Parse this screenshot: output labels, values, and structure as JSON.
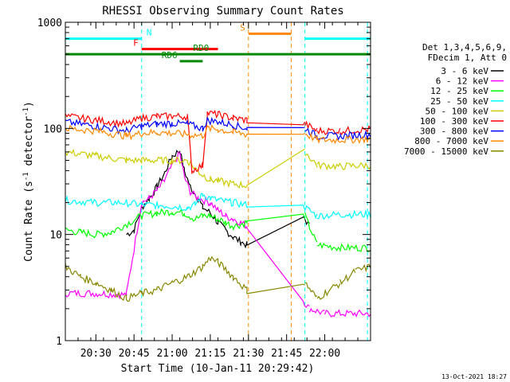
{
  "chart_data": {
    "type": "line",
    "title": "RHESSI Observing Summary Count Rates",
    "xlabel": "Start Time (10-Jan-11 20:29:42)",
    "ylabel_main": "Count Rate (s",
    "ylabel_sup1": "-1",
    "ylabel_mid": " detector",
    "ylabel_sup2": "-1",
    "ylabel_end": ")",
    "y_scale": "log",
    "xlim_minutes": [
      20.3,
      22.3
    ],
    "ylim": [
      1,
      1000
    ],
    "x_ticks": [
      {
        "v": 20.5,
        "label": "20:30"
      },
      {
        "v": 20.75,
        "label": "20:45"
      },
      {
        "v": 21.0,
        "label": "21:00"
      },
      {
        "v": 21.25,
        "label": "21:15"
      },
      {
        "v": 21.5,
        "label": "21:30"
      },
      {
        "v": 21.75,
        "label": "21:45"
      },
      {
        "v": 22.0,
        "label": "22:00"
      }
    ],
    "y_ticks": [
      {
        "v": 1,
        "label": "1"
      },
      {
        "v": 10,
        "label": "10"
      },
      {
        "v": 100,
        "label": "100"
      },
      {
        "v": 1000,
        "label": "1000"
      }
    ],
    "legend_header": [
      "Det 1,3,4,5,6,9,",
      "FDecim 1, Att 0"
    ],
    "legend_position": "right",
    "footer_date": "13-Oct-2021 18:27",
    "flags": [
      {
        "label": "N",
        "color": "#00ffff",
        "y": 700,
        "segments": [
          [
            20.3,
            20.8
          ],
          [
            21.87,
            22.3
          ]
        ]
      },
      {
        "label": "F",
        "color": "#ff0000",
        "y": 560,
        "segments": [
          [
            20.8,
            21.3
          ]
        ]
      },
      {
        "label": "S",
        "color": "#ff8800",
        "y": 780,
        "segments": [
          [
            21.5,
            21.78
          ]
        ]
      },
      {
        "label": "RD0",
        "color": "#008800",
        "y": 500,
        "segments": [
          [
            20.3,
            22.3
          ]
        ]
      },
      {
        "label": "RD6",
        "color": "#008800",
        "y": 430,
        "segments": [
          [
            21.05,
            21.2
          ]
        ]
      }
    ],
    "vlines": [
      {
        "x": 20.8,
        "color": "#00ffff"
      },
      {
        "x": 21.5,
        "color": "#ff8800"
      },
      {
        "x": 21.78,
        "color": "#ff8800"
      },
      {
        "x": 21.87,
        "color": "#00ffff"
      },
      {
        "x": 22.28,
        "color": "#00ffff"
      }
    ],
    "gap": [
      21.5,
      21.85
    ],
    "series": [
      {
        "name": "3 - 6 keV",
        "color": "#000000",
        "points": [
          [
            20.7,
            10
          ],
          [
            20.75,
            11
          ],
          [
            20.8,
            18
          ],
          [
            20.85,
            22
          ],
          [
            20.9,
            28
          ],
          [
            20.95,
            38
          ],
          [
            21.0,
            55
          ],
          [
            21.05,
            62
          ],
          [
            21.08,
            40
          ],
          [
            21.12,
            28
          ],
          [
            21.17,
            22
          ],
          [
            21.2,
            18
          ],
          [
            21.25,
            16
          ],
          [
            21.3,
            13
          ],
          [
            21.35,
            11
          ],
          [
            21.4,
            9.5
          ],
          [
            21.45,
            8.5
          ],
          [
            21.49,
            8
          ],
          [
            21.87,
            14
          ],
          [
            21.9,
            12
          ]
        ]
      },
      {
        "name": "6 - 12 keV",
        "color": "#ff00ff",
        "points": [
          [
            20.3,
            2.8
          ],
          [
            20.5,
            2.8
          ],
          [
            20.7,
            2.7
          ],
          [
            20.8,
            20
          ],
          [
            20.85,
            22
          ],
          [
            20.9,
            26
          ],
          [
            20.95,
            32
          ],
          [
            21.0,
            45
          ],
          [
            21.05,
            58
          ],
          [
            21.08,
            35
          ],
          [
            21.12,
            25
          ],
          [
            21.17,
            22
          ],
          [
            21.25,
            20
          ],
          [
            21.3,
            17
          ],
          [
            21.35,
            15
          ],
          [
            21.4,
            14
          ],
          [
            21.45,
            13
          ],
          [
            21.49,
            12
          ],
          [
            21.9,
            2
          ],
          [
            22.0,
            1.8
          ],
          [
            22.3,
            1.8
          ]
        ]
      },
      {
        "name": "12 - 25 keV",
        "color": "#00ff00",
        "points": [
          [
            20.3,
            11
          ],
          [
            20.4,
            10.5
          ],
          [
            20.5,
            10
          ],
          [
            20.6,
            10.5
          ],
          [
            20.8,
            15
          ],
          [
            20.9,
            16
          ],
          [
            21.0,
            16.5
          ],
          [
            21.08,
            16
          ],
          [
            21.15,
            14
          ],
          [
            21.2,
            15
          ],
          [
            21.25,
            15
          ],
          [
            21.3,
            14
          ],
          [
            21.35,
            13
          ],
          [
            21.4,
            12
          ],
          [
            21.45,
            12.5
          ],
          [
            21.49,
            13
          ],
          [
            21.87,
            15
          ],
          [
            21.95,
            8
          ],
          [
            22.1,
            7.5
          ],
          [
            22.3,
            7.5
          ]
        ]
      },
      {
        "name": "25 - 50 keV",
        "color": "#00ffff",
        "points": [
          [
            20.3,
            21
          ],
          [
            20.5,
            20
          ],
          [
            20.7,
            20
          ],
          [
            20.8,
            19
          ],
          [
            20.9,
            19
          ],
          [
            21.0,
            18.5
          ],
          [
            21.1,
            18
          ],
          [
            21.15,
            19
          ],
          [
            21.2,
            24
          ],
          [
            21.25,
            22
          ],
          [
            21.3,
            21
          ],
          [
            21.4,
            20
          ],
          [
            21.49,
            19
          ],
          [
            21.87,
            18
          ],
          [
            21.95,
            15
          ],
          [
            22.1,
            15.5
          ],
          [
            22.3,
            15.5
          ]
        ]
      },
      {
        "name": "50 - 100 keV",
        "color": "#cccc00",
        "points": [
          [
            20.3,
            60
          ],
          [
            20.5,
            55
          ],
          [
            20.7,
            50
          ],
          [
            20.8,
            50
          ],
          [
            20.9,
            50
          ],
          [
            21.0,
            50
          ],
          [
            21.1,
            50
          ],
          [
            21.18,
            38
          ],
          [
            21.25,
            33
          ],
          [
            21.3,
            32
          ],
          [
            21.4,
            30
          ],
          [
            21.49,
            29
          ],
          [
            21.87,
            60
          ],
          [
            21.95,
            45
          ],
          [
            22.1,
            44
          ],
          [
            22.3,
            45
          ]
        ]
      },
      {
        "name": "100 - 300 keV",
        "color": "#ff0000",
        "points": [
          [
            20.3,
            130
          ],
          [
            20.5,
            120
          ],
          [
            20.7,
            110
          ],
          [
            20.8,
            125
          ],
          [
            20.9,
            130
          ],
          [
            21.0,
            130
          ],
          [
            21.1,
            130
          ],
          [
            21.13,
            40
          ],
          [
            21.2,
            45
          ],
          [
            21.23,
            140
          ],
          [
            21.3,
            135
          ],
          [
            21.4,
            125
          ],
          [
            21.49,
            120
          ],
          [
            21.87,
            110
          ],
          [
            21.95,
            95
          ],
          [
            22.1,
            95
          ],
          [
            22.3,
            98
          ]
        ]
      },
      {
        "name": "300 - 800 keV",
        "color": "#0000ff",
        "points": [
          [
            20.3,
            115
          ],
          [
            20.5,
            105
          ],
          [
            20.7,
            95
          ],
          [
            20.8,
            105
          ],
          [
            20.9,
            110
          ],
          [
            21.0,
            112
          ],
          [
            21.1,
            110
          ],
          [
            21.2,
            100
          ],
          [
            21.23,
            120
          ],
          [
            21.3,
            115
          ],
          [
            21.4,
            108
          ],
          [
            21.49,
            100
          ],
          [
            21.87,
            100
          ],
          [
            21.95,
            85
          ],
          [
            22.1,
            85
          ],
          [
            22.3,
            88
          ]
        ]
      },
      {
        "name": "800 - 7000 keV",
        "color": "#ff8800",
        "points": [
          [
            20.3,
            100
          ],
          [
            20.5,
            95
          ],
          [
            20.7,
            85
          ],
          [
            20.8,
            90
          ],
          [
            20.9,
            92
          ],
          [
            21.0,
            90
          ],
          [
            21.1,
            88
          ],
          [
            21.2,
            85
          ],
          [
            21.23,
            100
          ],
          [
            21.3,
            98
          ],
          [
            21.4,
            92
          ],
          [
            21.49,
            88
          ],
          [
            21.87,
            90
          ],
          [
            21.95,
            78
          ],
          [
            22.1,
            78
          ],
          [
            22.3,
            80
          ]
        ]
      },
      {
        "name": "7000 - 15000 keV",
        "color": "#888800",
        "points": [
          [
            20.3,
            5
          ],
          [
            20.4,
            4
          ],
          [
            20.5,
            3.5
          ],
          [
            20.6,
            3
          ],
          [
            20.7,
            2.5
          ],
          [
            20.8,
            2.8
          ],
          [
            20.9,
            3
          ],
          [
            21.0,
            3.5
          ],
          [
            21.1,
            4
          ],
          [
            21.2,
            5
          ],
          [
            21.25,
            6
          ],
          [
            21.3,
            5.5
          ],
          [
            21.4,
            4
          ],
          [
            21.49,
            3
          ],
          [
            21.87,
            3.5
          ],
          [
            21.95,
            2.5
          ],
          [
            22.1,
            3.5
          ],
          [
            22.2,
            4.5
          ],
          [
            22.3,
            5
          ]
        ]
      }
    ]
  }
}
